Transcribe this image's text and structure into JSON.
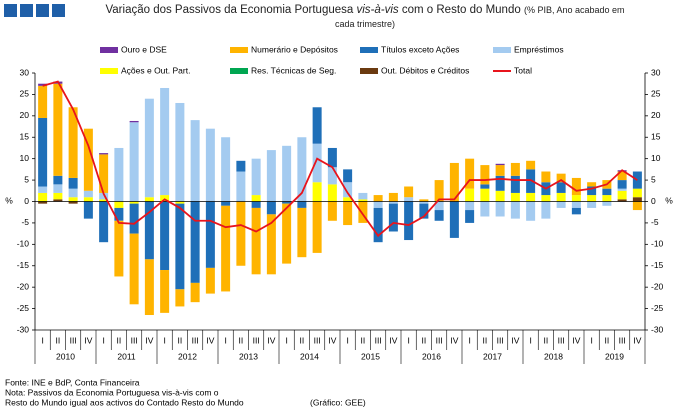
{
  "chart_data": {
    "type": "bar",
    "title": [
      "Variação dos Passivos da Economia Portuguesa ",
      "vis-à-vis",
      " com o Resto do Mundo"
    ],
    "subtitle": "(% PIB, Ano acabado em cada trimestre)",
    "ylabel": "%",
    "categories": [
      "I",
      "II",
      "III",
      "IV",
      "I",
      "II",
      "III",
      "IV",
      "I",
      "II",
      "III",
      "IV",
      "I",
      "II",
      "III",
      "IV",
      "I",
      "II",
      "III",
      "IV",
      "I",
      "II",
      "III",
      "IV",
      "I",
      "II",
      "III",
      "IV",
      "I",
      "II",
      "III",
      "IV",
      "I",
      "II",
      "III",
      "IV",
      "I",
      "II",
      "III",
      "IV"
    ],
    "years": [
      "2010",
      "2011",
      "2012",
      "2013",
      "2014",
      "2015",
      "2016",
      "2017",
      "2018",
      "2019"
    ],
    "ylim": [
      -30,
      30
    ],
    "yticks": [
      30,
      25,
      20,
      15,
      10,
      5,
      0,
      -5,
      -10,
      -15,
      -20,
      -25,
      -30
    ],
    "stacked": true,
    "series": [
      {
        "name": "Ouro e DSE",
        "color": "#7030a0",
        "values": [
          0.5,
          0.5,
          0,
          0,
          0.3,
          0,
          0.3,
          0,
          0,
          0,
          0,
          0,
          0,
          0,
          0,
          0,
          0,
          0,
          0,
          0,
          0,
          0,
          0,
          0,
          0,
          0,
          0,
          0,
          0,
          0,
          0.3,
          0,
          0,
          0,
          0,
          0,
          0,
          0,
          0.3,
          0
        ]
      },
      {
        "name": "Numerário e Depósitos",
        "color": "#ffb400",
        "values": [
          7.5,
          21.5,
          16.5,
          14.5,
          9,
          -13,
          -16.5,
          -13,
          -10,
          -4,
          -4.5,
          -6,
          -20,
          -15,
          -15.5,
          -14,
          -14,
          -11.5,
          -12,
          -4.5,
          -5.5,
          -5,
          1.5,
          2,
          2.5,
          0.5,
          5,
          9,
          7,
          4.5,
          2.5,
          3,
          2,
          2.5,
          2,
          4,
          1,
          2,
          2,
          -2
        ]
      },
      {
        "name": "Títulos exceto Ações",
        "color": "#1f6fb8",
        "values": [
          16,
          2,
          2.5,
          -4,
          -9.5,
          -3,
          -7,
          -13.5,
          -16,
          -20,
          -19,
          -15.5,
          -1,
          2.5,
          -1.5,
          -3,
          -0.5,
          -1.5,
          8.5,
          4.5,
          3,
          0,
          -8,
          -6.5,
          -9,
          -3.5,
          -2.5,
          -8.5,
          -3,
          1,
          3.5,
          4,
          5.5,
          3,
          2.5,
          -1.5,
          2,
          1.5,
          2,
          4
        ]
      },
      {
        "name": "Empréstimos",
        "color": "#a4cbf0",
        "values": [
          1.5,
          2,
          2,
          1.5,
          1.5,
          12.5,
          18.5,
          23,
          25,
          23,
          19,
          17,
          15,
          7,
          8.5,
          12,
          13,
          15,
          9,
          4,
          3.5,
          1.5,
          -1.5,
          -0.5,
          1,
          -0.5,
          -2,
          0,
          -2,
          -3.5,
          -3.5,
          -4,
          -4.5,
          -4,
          -1.5,
          -1.5,
          -1.5,
          -1,
          0.5,
          0
        ]
      },
      {
        "name": "Ações e Out. Part.",
        "color": "#ffff00",
        "values": [
          2,
          1.5,
          1,
          1,
          0.5,
          -1.5,
          -0.5,
          1,
          1.5,
          -0.5,
          0,
          0,
          0,
          0,
          1.5,
          0,
          0,
          0,
          4.5,
          4,
          1,
          0.5,
          0,
          0,
          0,
          0,
          0,
          0,
          3,
          3,
          2.5,
          2,
          2,
          1.5,
          2,
          1.5,
          1.5,
          1.5,
          2,
          2
        ]
      },
      {
        "name": "Res. Técnicas de Seg.",
        "color": "#00a651",
        "values": [
          0,
          0,
          0,
          0,
          0,
          0,
          0,
          0,
          0,
          0,
          0,
          0,
          0,
          0,
          0,
          0,
          0,
          0,
          0,
          0,
          0,
          0,
          0,
          0,
          0,
          0,
          0,
          0,
          0,
          0,
          0,
          0,
          0,
          0,
          0,
          0,
          0,
          0,
          0,
          0
        ]
      },
      {
        "name": "Out. Débitos e Créditos",
        "color": "#6b3a10",
        "values": [
          -0.5,
          0.5,
          -0.5,
          0,
          0,
          0,
          0,
          0,
          0,
          0,
          0,
          0,
          0,
          0,
          0,
          0,
          0,
          0,
          0,
          0,
          0,
          0,
          0,
          0,
          0,
          0,
          0,
          0,
          0,
          0,
          0,
          0,
          0,
          0,
          0,
          0,
          0,
          0,
          0.5,
          1
        ]
      },
      {
        "name": "Total",
        "color": "#e8141c",
        "type": "line",
        "values": [
          27,
          28,
          21.5,
          13,
          1.8,
          -5,
          -5.2,
          -2.5,
          0.5,
          -1.5,
          -4.5,
          -4.5,
          -6,
          -5.5,
          -7,
          -5,
          -1.5,
          2,
          10,
          8,
          2,
          -3,
          -8,
          -5,
          -5.5,
          -3.5,
          0.5,
          0.5,
          5,
          5,
          5.3,
          5,
          5,
          3,
          5,
          2.5,
          3,
          4,
          7.3,
          5
        ]
      }
    ],
    "notes": [
      "Fonte: INE e BdP, Conta Financeira",
      "Nota: Passivos da Economia Portuguesa vis-à-vis com o",
      "Resto do Mundo igual aos activos do Contado Resto do Mundo"
    ],
    "credit": "(Gráfico: GEE)"
  }
}
